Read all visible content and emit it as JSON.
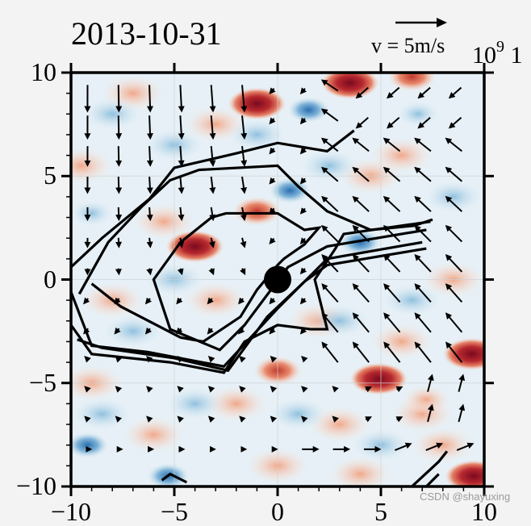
{
  "chart_data": {
    "type": "heatmap",
    "subtype": "filled-contour with quiver (wind vectors) and line contours",
    "title": "2013-10-31",
    "xlabel": "",
    "ylabel": "",
    "xlim": [
      -10,
      10
    ],
    "ylim": [
      -10,
      10
    ],
    "x_ticks": [
      -10,
      -5,
      0,
      5,
      10
    ],
    "y_ticks": [
      10,
      5,
      0,
      -5,
      -10
    ],
    "x_tick_labels": [
      "−10",
      "−5",
      "0",
      "5",
      "10"
    ],
    "y_tick_labels": [
      "10",
      "5",
      "0",
      "−5",
      "−10"
    ],
    "grid": true,
    "colormap": "RdBu_r (blue negative, red positive)",
    "quiver_key": {
      "label": "v = 5m/s",
      "speed_m_s": 5
    },
    "offset_text": "10^9",
    "offset_text_display": {
      "base": "10",
      "exponent": "9",
      "trailing": "1"
    },
    "center_marker": {
      "x": 0,
      "y": 0,
      "shape": "filled circle",
      "color": "#000000"
    },
    "warm_anomalies": [
      {
        "x": -1,
        "y": 8.5,
        "intensity": "strong"
      },
      {
        "x": 3.5,
        "y": 9.5,
        "intensity": "strong"
      },
      {
        "x": 6.5,
        "y": 9.8,
        "intensity": "moderate"
      },
      {
        "x": -1,
        "y": 3.3,
        "intensity": "moderate"
      },
      {
        "x": -4,
        "y": 1.6,
        "intensity": "strong"
      },
      {
        "x": 0,
        "y": -4.4,
        "intensity": "moderate"
      },
      {
        "x": 4.9,
        "y": -4.8,
        "intensity": "strong"
      },
      {
        "x": 9.4,
        "y": -3.6,
        "intensity": "strong"
      },
      {
        "x": 9.5,
        "y": -9.5,
        "intensity": "strong"
      },
      {
        "x": 7.2,
        "y": -5.8,
        "intensity": "weak"
      }
    ],
    "cool_anomalies": [
      {
        "x": 1.5,
        "y": 8.2,
        "intensity": "moderate"
      },
      {
        "x": 0.6,
        "y": 4.3,
        "intensity": "moderate"
      },
      {
        "x": 4,
        "y": 1.8,
        "intensity": "moderate"
      },
      {
        "x": -9,
        "y": 3.2,
        "intensity": "weak"
      },
      {
        "x": -9.2,
        "y": -8,
        "intensity": "moderate"
      },
      {
        "x": -5.3,
        "y": -9.5,
        "intensity": "moderate"
      },
      {
        "x": 6.8,
        "y": 8.0,
        "intensity": "weak"
      }
    ],
    "contour_lines": [
      [
        [
          -10,
          0.6
        ],
        [
          -8.5,
          2
        ],
        [
          -6.2,
          3.9
        ],
        [
          -5,
          5.4
        ],
        [
          -2,
          6.1
        ],
        [
          0,
          6.6
        ],
        [
          2.4,
          6.2
        ],
        [
          3.7,
          7.2
        ]
      ],
      [
        [
          -9.6,
          -0.7
        ],
        [
          -8.2,
          1.8
        ],
        [
          -6.6,
          3.5
        ],
        [
          -5.2,
          4.8
        ],
        [
          -3.8,
          5.3
        ],
        [
          0,
          5.5
        ],
        [
          1,
          4.5
        ],
        [
          2.4,
          3.3
        ],
        [
          4.5,
          2.4
        ],
        [
          6.6,
          2.6
        ],
        [
          7.5,
          2.9
        ]
      ],
      [
        [
          -10,
          -0.6
        ],
        [
          -9,
          -3.2
        ],
        [
          -6.3,
          -3.5
        ],
        [
          -2.6,
          -4.2
        ],
        [
          0,
          -1.4
        ],
        [
          1.8,
          0.4
        ],
        [
          2.4,
          1.0
        ],
        [
          7,
          1.8
        ]
      ],
      [
        [
          -9.7,
          -2.9
        ],
        [
          -8.5,
          -3.3
        ],
        [
          -5,
          -3.8
        ],
        [
          -2.4,
          -4.4
        ],
        [
          -0.5,
          -1.8
        ],
        [
          1.3,
          -0.1
        ],
        [
          2.4,
          0.7
        ],
        [
          7.2,
          1.5
        ]
      ],
      [
        [
          -9,
          -0.2
        ],
        [
          -7.6,
          -1.3
        ],
        [
          -4.7,
          -2.8
        ],
        [
          -3.6,
          -3
        ],
        [
          -1.8,
          -1.8
        ],
        [
          -1,
          -0.5
        ],
        [
          0,
          0.7
        ],
        [
          0.3,
          1
        ],
        [
          1.3,
          1.7
        ],
        [
          2,
          2.5
        ],
        [
          1.3,
          2.4
        ],
        [
          0,
          3.2
        ],
        [
          -2.5,
          3.2
        ],
        [
          -3.2,
          3
        ],
        [
          -4.7,
          1.8
        ],
        [
          -6,
          0
        ],
        [
          -5.2,
          -2.4
        ],
        [
          -2.8,
          -3.4
        ],
        [
          -1.6,
          -2.2
        ],
        [
          0.5,
          0.6
        ],
        [
          2.4,
          1.6
        ],
        [
          7.2,
          2.4
        ]
      ],
      [
        [
          -10,
          -2.2
        ],
        [
          -9,
          -3.6
        ],
        [
          -5.2,
          -4.0
        ],
        [
          -2.6,
          -4.5
        ],
        [
          -1.6,
          -3
        ],
        [
          0,
          -2.2
        ],
        [
          1.6,
          -2.4
        ],
        [
          2.4,
          -2.4
        ],
        [
          1.8,
          0
        ],
        [
          2.8,
          1.5
        ],
        [
          3.2,
          2.2
        ],
        [
          7.4,
          2.8
        ]
      ],
      [
        [
          -5.6,
          -9.7
        ],
        [
          -5.2,
          -9.4
        ],
        [
          -4.4,
          -9.8
        ]
      ],
      [
        [
          6.5,
          -10
        ],
        [
          7.8,
          -8.8
        ],
        [
          8.2,
          -8.3
        ]
      ],
      [
        [
          7.2,
          -10
        ],
        [
          7.8,
          -9.4
        ]
      ]
    ],
    "wind_field_summary": "Northwest-of-center: southward/southeastward flow; east of center: strong northwestward flow (≈3–6 m/s); south: weak easterly/northeasterly flow; far south-east: eastward flow near y=−9"
  },
  "watermark": "CSDN @shayuxing"
}
